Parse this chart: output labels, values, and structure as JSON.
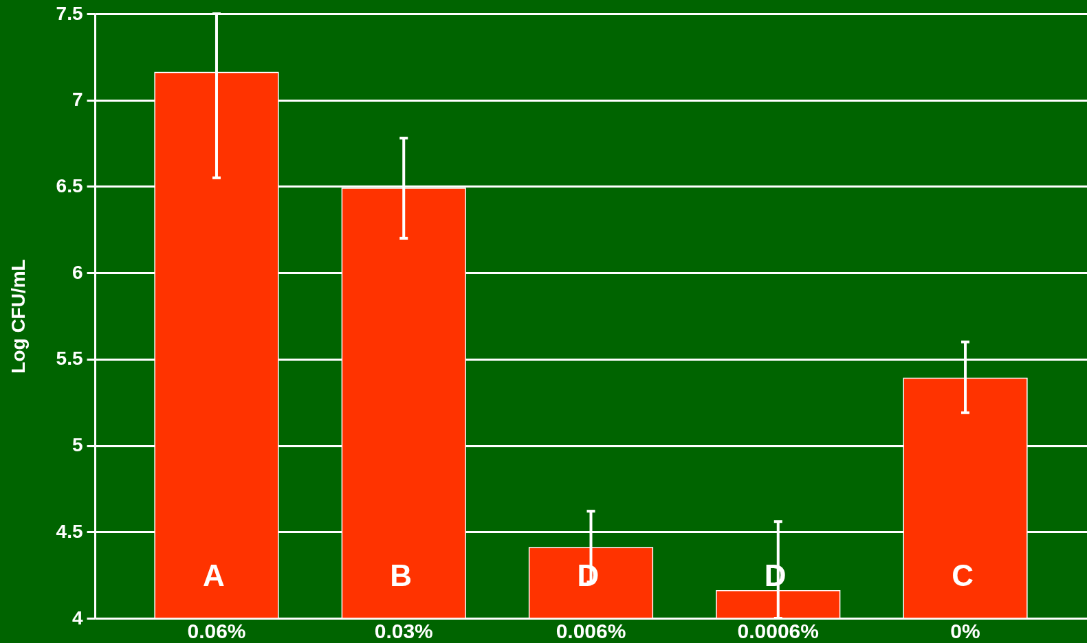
{
  "chart_data": {
    "type": "bar",
    "ylabel": "Log CFU/mL",
    "categories": [
      "0.06%",
      "0.03%",
      "0.006%",
      "0.0006%",
      "0%"
    ],
    "values": [
      7.16,
      6.49,
      4.41,
      4.16,
      5.39
    ],
    "errors": [
      [
        6.55,
        7.5
      ],
      [
        6.2,
        6.78
      ],
      [
        4.21,
        4.62
      ],
      [
        4.0,
        4.56
      ],
      [
        5.19,
        5.6
      ]
    ],
    "color": "#ff3300",
    "ylim": [
      4,
      7.5
    ],
    "yticks": [
      4,
      4.5,
      5,
      5.5,
      6,
      6.5,
      7,
      7.5
    ],
    "grid": "y",
    "annotations": [
      "A",
      "B",
      "D",
      "D",
      "C"
    ]
  }
}
